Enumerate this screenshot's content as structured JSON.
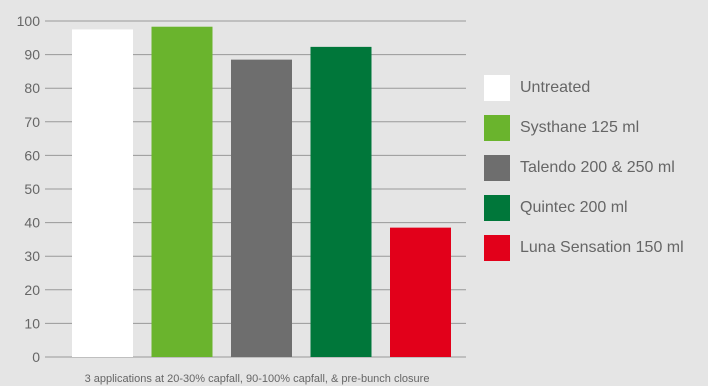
{
  "chart_data": {
    "type": "bar",
    "title": "",
    "xlabel": "3 applications at 20-30% capfall, 90-100% capfall, & pre-bunch closure",
    "ylabel": "",
    "ylim": [
      0,
      100
    ],
    "yticks": [
      0,
      10,
      20,
      30,
      40,
      50,
      60,
      70,
      80,
      90,
      100
    ],
    "grid": true,
    "legend_position": "right",
    "categories": [
      "Untreated",
      "Systhane 125 ml",
      "Talendo 200 & 250 ml",
      "Quintec 200 ml",
      "Luna Sensation 150 ml"
    ],
    "values": [
      97.5,
      98.3,
      88.5,
      92.3,
      38.5
    ],
    "colors": [
      "#ffffff",
      "#6ab42d",
      "#6e6e6e",
      "#00773a",
      "#e2001a"
    ]
  },
  "style": {
    "background": "#e5e5e5",
    "gridline_color": "#999999",
    "text_color": "#666666"
  }
}
